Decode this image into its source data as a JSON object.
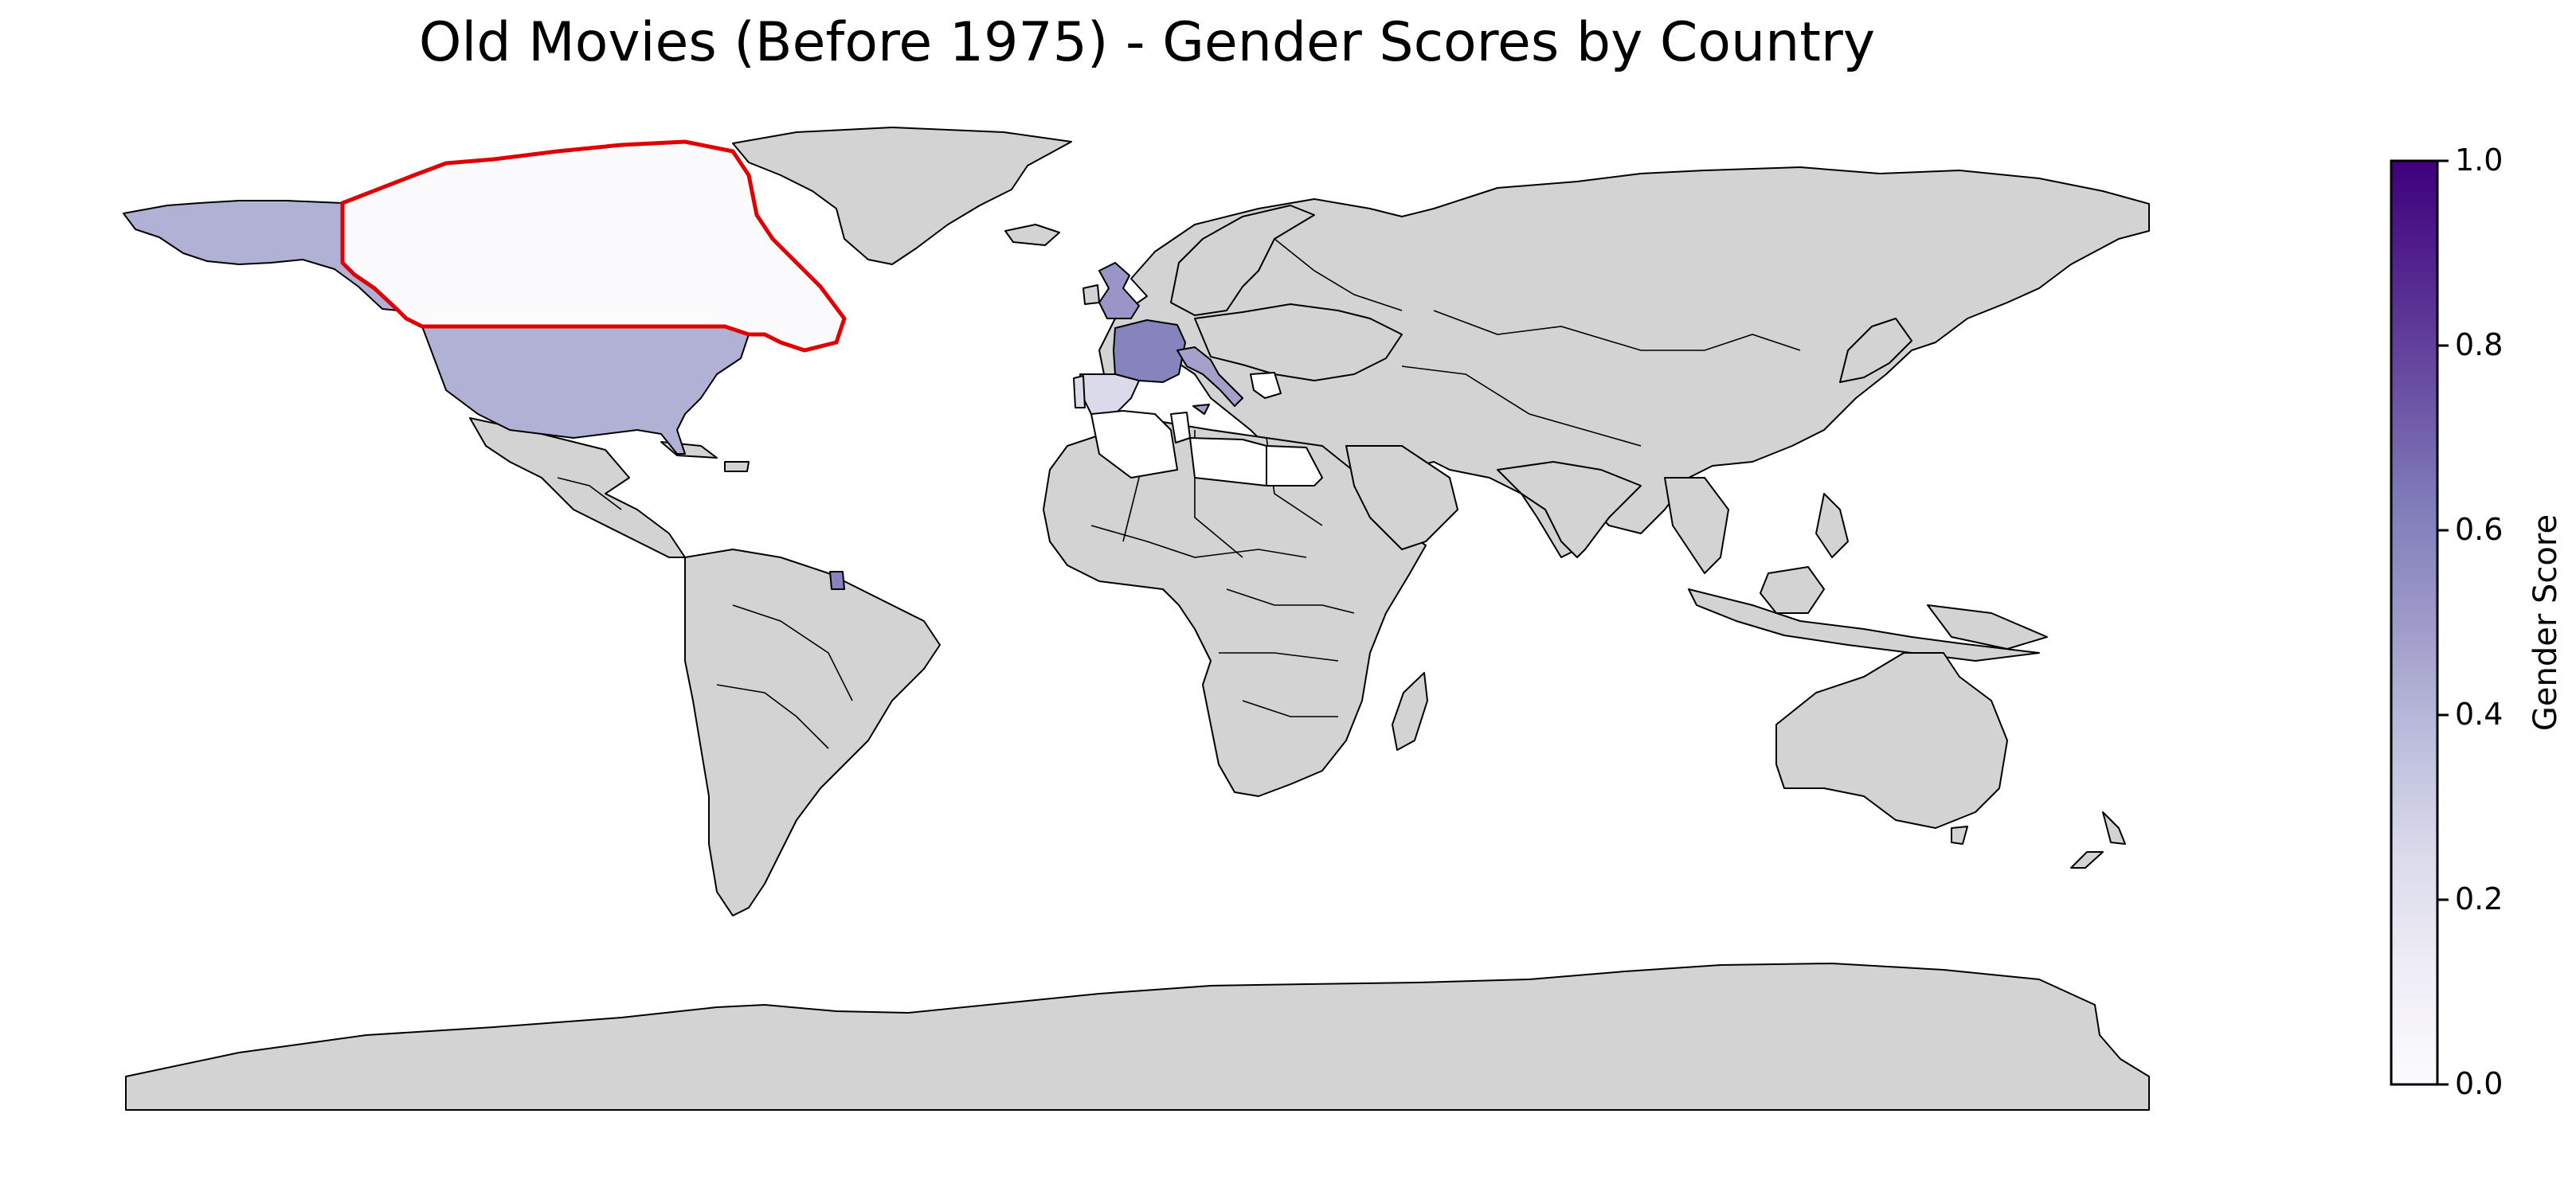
{
  "title": "Old Movies (Before 1975) - Gender Scores by Country",
  "colorbar": {
    "label": "Gender Score",
    "range": [
      0.0,
      1.0
    ],
    "ticks": [
      "0.0",
      "0.2",
      "0.4",
      "0.6",
      "0.8",
      "1.0"
    ],
    "colormap": "Purples",
    "gradient_colors": [
      "#fcfbfd",
      "#efedf5",
      "#dadaeb",
      "#bcbddc",
      "#9e9ac8",
      "#807dba",
      "#6a51a3",
      "#54278f",
      "#3f007d"
    ]
  },
  "map": {
    "no_data_color": "#d3d3d3",
    "border_color": "#000000",
    "highlight_color": "#e00000"
  },
  "chart_data": {
    "type": "heatmap",
    "title": "Old Movies (Before 1975) - Gender Scores by Country",
    "value_label": "Gender Score",
    "vmin": 0.0,
    "vmax": 1.0,
    "countries": [
      {
        "name": "United States of America",
        "score": 0.42
      },
      {
        "name": "Alaska (USA)",
        "score": 0.42
      },
      {
        "name": "Canada",
        "score": 0.01,
        "highlighted": true
      },
      {
        "name": "United Kingdom",
        "score": 0.52
      },
      {
        "name": "France",
        "score": 0.6
      },
      {
        "name": "French Guiana (France)",
        "score": 0.6
      },
      {
        "name": "Italy",
        "score": 0.48
      },
      {
        "name": "Spain",
        "score": 0.25
      },
      {
        "name": "Portugal",
        "score": 0.25
      },
      {
        "name": "Algeria",
        "score": 0.0
      },
      {
        "name": "Tunisia",
        "score": 0.0
      },
      {
        "name": "Greece",
        "score": 0.0
      },
      {
        "name": "Egypt",
        "score": 0.0
      },
      {
        "name": "Libya",
        "score": 0.0
      }
    ]
  }
}
